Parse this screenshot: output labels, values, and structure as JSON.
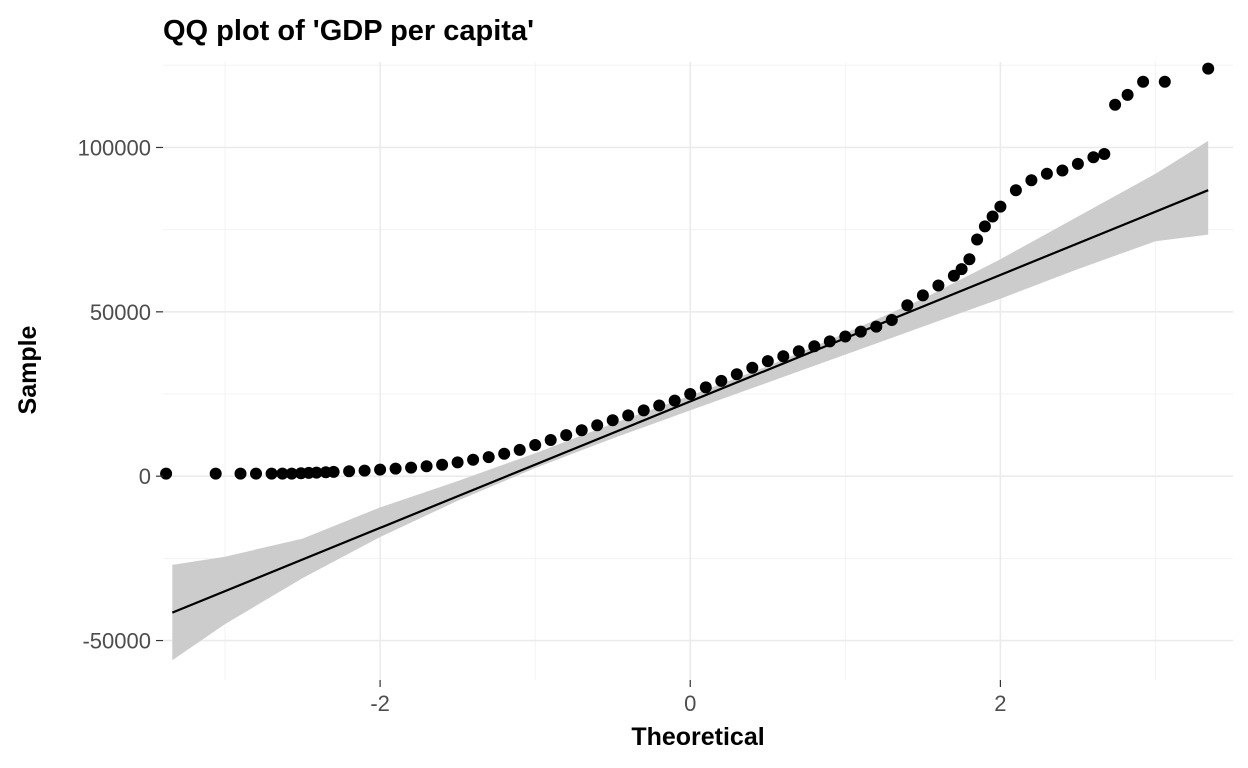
{
  "chart_data": {
    "type": "scatter",
    "title": "QQ plot of 'GDP per capita'",
    "xlabel": "Theoretical",
    "ylabel": "Sample",
    "xlim": [
      -3.4,
      3.5
    ],
    "ylim": [
      -62000,
      126000
    ],
    "x_ticks": [
      -2,
      0,
      2
    ],
    "x_tick_labels": [
      "-2",
      "0",
      "2"
    ],
    "y_ticks": [
      -50000,
      0,
      50000,
      100000
    ],
    "y_tick_labels": [
      "-50000",
      "0",
      "50000",
      "100000"
    ],
    "grid": true,
    "legend": "none",
    "colors": {
      "points": "#000000",
      "line": "#000000",
      "band": "#cccccc",
      "grid": "#ebebeb"
    },
    "points": {
      "x": [
        -3.38,
        -3.06,
        -2.9,
        -2.8,
        -2.7,
        -2.63,
        -2.57,
        -2.51,
        -2.46,
        -2.41,
        -2.35,
        -2.3,
        -2.2,
        -2.1,
        -2.0,
        -1.9,
        -1.8,
        -1.7,
        -1.6,
        -1.5,
        -1.4,
        -1.3,
        -1.2,
        -1.1,
        -1.0,
        -0.9,
        -0.8,
        -0.7,
        -0.6,
        -0.5,
        -0.4,
        -0.3,
        -0.2,
        -0.1,
        0.0,
        0.1,
        0.2,
        0.3,
        0.4,
        0.5,
        0.6,
        0.7,
        0.8,
        0.9,
        1.0,
        1.1,
        1.2,
        1.3,
        1.4,
        1.5,
        1.6,
        1.7,
        1.75,
        1.8,
        1.85,
        1.9,
        1.95,
        2.0,
        2.1,
        2.2,
        2.3,
        2.4,
        2.5,
        2.6,
        2.67,
        2.74,
        2.82,
        2.92,
        3.06,
        3.34
      ],
      "y": [
        800,
        800,
        800,
        800,
        800,
        800,
        800,
        900,
        1000,
        1100,
        1200,
        1300,
        1500,
        1700,
        2000,
        2300,
        2600,
        3000,
        3500,
        4200,
        5000,
        5800,
        6800,
        8000,
        9500,
        11000,
        12500,
        14000,
        15500,
        17000,
        18500,
        20000,
        21500,
        23000,
        25000,
        27000,
        29000,
        31000,
        33000,
        35000,
        36500,
        38000,
        39500,
        41000,
        42500,
        44000,
        45500,
        47500,
        52000,
        55000,
        58000,
        61000,
        63000,
        66000,
        72000,
        76000,
        79000,
        82000,
        87000,
        90000,
        92000,
        93000,
        95000,
        97000,
        98000,
        113000,
        116000,
        120000,
        120000,
        124000
      ]
    },
    "reference_line": {
      "x": [
        -3.34,
        3.34
      ],
      "y": [
        -41500,
        87000
      ]
    },
    "confidence_band": {
      "x": [
        -3.34,
        -3.0,
        -2.5,
        -2.0,
        -1.5,
        -1.0,
        -0.5,
        0.0,
        0.5,
        1.0,
        1.5,
        2.0,
        2.5,
        3.0,
        3.34
      ],
      "lower": [
        -56000,
        -45000,
        -31000,
        -18500,
        -7500,
        2500,
        11500,
        20000,
        28500,
        37000,
        45500,
        54000,
        63000,
        71500,
        73500
      ],
      "upper": [
        -27000,
        -24500,
        -19000,
        -9500,
        -1500,
        7000,
        16000,
        24500,
        33500,
        43500,
        54000,
        66000,
        79000,
        92000,
        102000
      ]
    }
  }
}
